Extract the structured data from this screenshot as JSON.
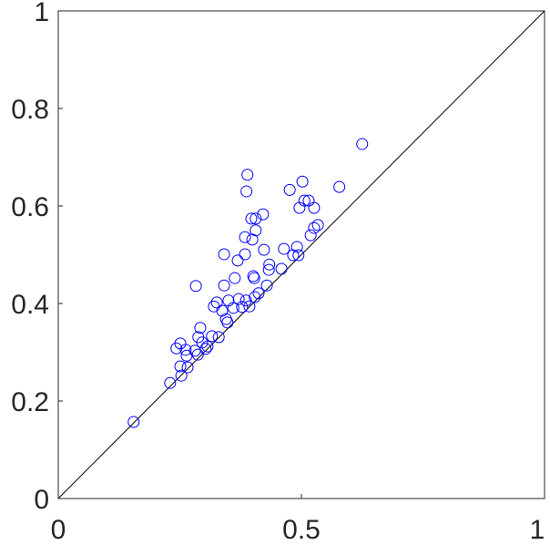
{
  "chart_data": {
    "type": "scatter",
    "x": [
      0.155,
      0.625,
      0.389,
      0.387,
      0.502,
      0.476,
      0.578,
      0.506,
      0.515,
      0.496,
      0.526,
      0.421,
      0.397,
      0.406,
      0.406,
      0.384,
      0.399,
      0.534,
      0.526,
      0.519,
      0.491,
      0.464,
      0.423,
      0.384,
      0.341,
      0.483,
      0.494,
      0.369,
      0.434,
      0.433,
      0.459,
      0.401,
      0.403,
      0.363,
      0.341,
      0.283,
      0.429,
      0.412,
      0.404,
      0.371,
      0.35,
      0.326,
      0.32,
      0.386,
      0.378,
      0.393,
      0.36,
      0.337,
      0.345,
      0.348,
      0.33,
      0.292,
      0.316,
      0.288,
      0.296,
      0.251,
      0.243,
      0.307,
      0.303,
      0.262,
      0.281,
      0.264,
      0.287,
      0.266,
      0.251,
      0.253,
      0.23
    ],
    "y": [
      0.157,
      0.727,
      0.664,
      0.63,
      0.65,
      0.633,
      0.639,
      0.611,
      0.611,
      0.596,
      0.596,
      0.583,
      0.574,
      0.574,
      0.55,
      0.536,
      0.531,
      0.561,
      0.555,
      0.54,
      0.516,
      0.512,
      0.51,
      0.501,
      0.501,
      0.499,
      0.499,
      0.488,
      0.48,
      0.469,
      0.471,
      0.456,
      0.452,
      0.452,
      0.437,
      0.436,
      0.437,
      0.421,
      0.413,
      0.409,
      0.406,
      0.402,
      0.394,
      0.406,
      0.393,
      0.394,
      0.391,
      0.385,
      0.368,
      0.361,
      0.331,
      0.35,
      0.333,
      0.331,
      0.32,
      0.318,
      0.308,
      0.312,
      0.307,
      0.305,
      0.303,
      0.293,
      0.295,
      0.269,
      0.271,
      0.252,
      0.237
    ],
    "color": "#0000ff",
    "xlim": [
      0,
      1
    ],
    "ylim": [
      0,
      1
    ],
    "xticks": [
      0,
      0.5,
      1
    ],
    "yticks": [
      0,
      0.2,
      0.4,
      0.6,
      0.8,
      1
    ]
  }
}
